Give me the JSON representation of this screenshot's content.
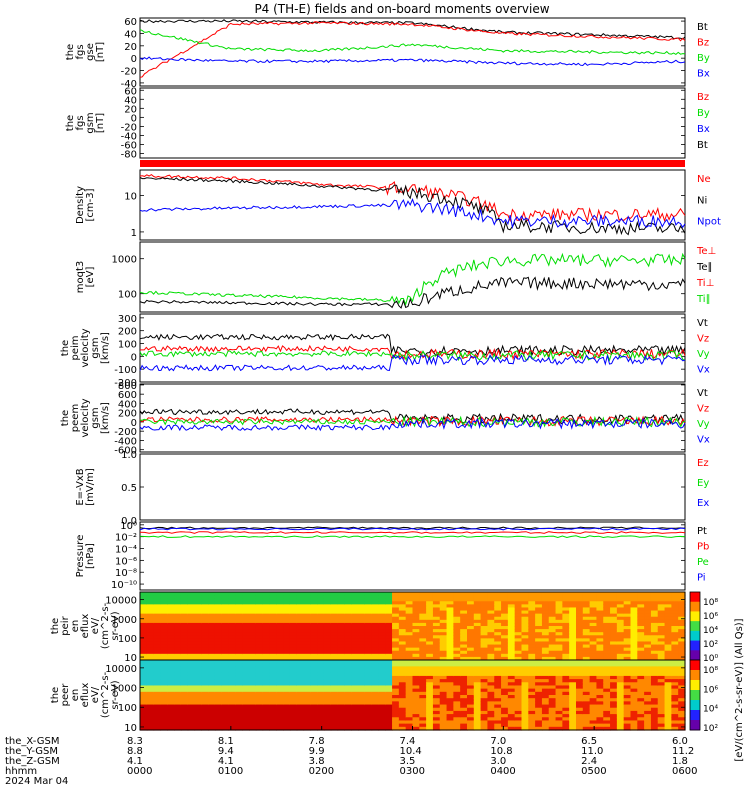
{
  "title": "P4 (TH-E) fields and on-board moments overview",
  "colors": {
    "black": "#000000",
    "red": "#ff0000",
    "green": "#00dd00",
    "blue": "#0000ff"
  },
  "panels": [
    {
      "id": "fgs-gse",
      "ylabel": [
        "the",
        "fgs",
        "gse",
        "[nT]"
      ],
      "ticks": [
        "60",
        "40",
        "20",
        "0",
        "-20",
        "-40"
      ],
      "tick_values": [
        60,
        40,
        20,
        0,
        -20,
        -40
      ],
      "ylim": [
        -45,
        65
      ],
      "legend": [
        {
          "text": "Bt",
          "color": "black"
        },
        {
          "text": "Bz",
          "color": "red"
        },
        {
          "text": "By",
          "color": "green"
        },
        {
          "text": "Bx",
          "color": "blue"
        }
      ]
    },
    {
      "id": "fgs-gsm",
      "ylabel": [
        "the",
        "fgs",
        "gsm",
        "[nT]"
      ],
      "ticks": [
        "60",
        "40",
        "20",
        "0",
        "-20",
        "-40",
        "-60",
        "-80"
      ],
      "tick_values": [
        60,
        40,
        20,
        0,
        -20,
        -40,
        -60,
        -80
      ],
      "ylim": [
        -90,
        65
      ],
      "legend": [
        {
          "text": "Bz",
          "color": "red"
        },
        {
          "text": "By",
          "color": "green"
        },
        {
          "text": "Bx",
          "color": "blue"
        },
        {
          "text": "Bt",
          "color": "black"
        }
      ]
    },
    {
      "id": "density",
      "ylabel": [
        "Density",
        "[cm-3]"
      ],
      "ticks": [
        "10",
        "1"
      ],
      "tick_values": [
        10,
        1
      ],
      "log": true,
      "ylim": [
        0.6,
        50
      ],
      "legend": [
        {
          "text": "Ne",
          "color": "red"
        },
        {
          "text": "Ni",
          "color": "black"
        },
        {
          "text": "Npot",
          "color": "blue"
        }
      ]
    },
    {
      "id": "temperature",
      "ylabel": [
        "moqt3",
        "[eV]"
      ],
      "ticks": [
        "1000",
        "100"
      ],
      "tick_values": [
        1000,
        100
      ],
      "log": true,
      "ylim": [
        30,
        3000
      ],
      "legend": [
        {
          "text": "Te⊥",
          "color": "red"
        },
        {
          "text": "Te∥",
          "color": "black"
        },
        {
          "text": "Ti⊥",
          "color": "red"
        },
        {
          "text": "Ti∥",
          "color": "green"
        }
      ]
    },
    {
      "id": "peim-velocity",
      "ylabel": [
        "the",
        "peim",
        "velocity",
        "gsm",
        "[km/s]"
      ],
      "ticks": [
        "300",
        "200",
        "100",
        "0",
        "-100",
        "-200"
      ],
      "tick_values": [
        300,
        200,
        100,
        0,
        -100,
        -200
      ],
      "ylim": [
        -200,
        330
      ],
      "legend": [
        {
          "text": "Vt",
          "color": "black"
        },
        {
          "text": "Vz",
          "color": "red"
        },
        {
          "text": "Vy",
          "color": "green"
        },
        {
          "text": "Vx",
          "color": "blue"
        }
      ]
    },
    {
      "id": "peem-velocity",
      "ylabel": [
        "the",
        "peem",
        "velocity",
        "gsm",
        "[km/s]"
      ],
      "ticks": [
        "800",
        "600",
        "400",
        "200",
        "0",
        "-200",
        "-400",
        "-600"
      ],
      "tick_values": [
        800,
        600,
        400,
        200,
        0,
        -200,
        -400,
        -600
      ],
      "ylim": [
        -650,
        820
      ],
      "legend": [
        {
          "text": "Vt",
          "color": "black"
        },
        {
          "text": "Vz",
          "color": "red"
        },
        {
          "text": "Vy",
          "color": "green"
        },
        {
          "text": "Vx",
          "color": "blue"
        }
      ]
    },
    {
      "id": "efield",
      "ylabel": [
        "E=-VxB",
        "[mV/m]"
      ],
      "ticks": [
        "1.0",
        "0.5",
        "0.0"
      ],
      "tick_values": [
        1.0,
        0.5,
        0.0
      ],
      "ylim": [
        0,
        1.0
      ],
      "legend": [
        {
          "text": "Ez",
          "color": "red"
        },
        {
          "text": "Ey",
          "color": "green"
        },
        {
          "text": "Ex",
          "color": "blue"
        }
      ]
    },
    {
      "id": "pressure",
      "ylabel": [
        "Pressure",
        "[nPa]"
      ],
      "ticks": [
        "10⁰",
        "10⁻²",
        "10⁻⁴",
        "10⁻⁶",
        "10⁻⁸",
        "10⁻¹⁰"
      ],
      "tick_values": [
        1,
        0.01,
        0.0001,
        1e-06,
        1e-08,
        1e-10
      ],
      "log": true,
      "ylim": [
        1e-11,
        3
      ],
      "legend": [
        {
          "text": "Pt",
          "color": "black"
        },
        {
          "text": "Pb",
          "color": "red"
        },
        {
          "text": "Pe",
          "color": "green"
        },
        {
          "text": "Pi",
          "color": "blue"
        }
      ]
    },
    {
      "id": "peir-eflux",
      "ylabel": [
        "the",
        "peir",
        "en",
        "eflux",
        "eV/",
        "(cm^2-s-",
        "sr-eV)"
      ],
      "ticks": [
        "10000",
        "1000",
        "100",
        "10"
      ],
      "tick_values": [
        10000,
        1000,
        100,
        10
      ],
      "log": true,
      "ylim": [
        7,
        25000
      ],
      "colorbar_ticks": [
        "10⁸",
        "10⁶",
        "10⁴",
        "10²",
        "10⁰"
      ]
    },
    {
      "id": "peer-eflux",
      "ylabel": [
        "the",
        "peer",
        "en",
        "eflux",
        "eV/",
        "(cm^2-s-",
        "sr-eV)"
      ],
      "ticks": [
        "10000",
        "1000",
        "100",
        "10"
      ],
      "tick_values": [
        10000,
        1000,
        100,
        10
      ],
      "log": true,
      "ylim": [
        7,
        25000
      ],
      "colorbar_ticks": [
        "10⁸",
        "10⁶",
        "10⁴",
        "10²"
      ]
    }
  ],
  "colorbar_label": "[eV/(cm^2-s-sr-eV)] (All Qs)]",
  "orbit_table": {
    "rows": [
      {
        "label": "the_X-GSM",
        "values": [
          "8.3",
          "8.1",
          "7.8",
          "7.4",
          "7.0",
          "6.5",
          "6.0"
        ]
      },
      {
        "label": "the_Y-GSM",
        "values": [
          "8.8",
          "9.4",
          "9.9",
          "10.4",
          "10.8",
          "11.0",
          "11.2"
        ]
      },
      {
        "label": "the_Z-GSM",
        "values": [
          "4.1",
          "4.1",
          "3.8",
          "3.5",
          "3.0",
          "2.4",
          "1.8"
        ]
      },
      {
        "label": "hhmm",
        "values": [
          "0000",
          "0100",
          "0200",
          "0300",
          "0400",
          "0500",
          "0600"
        ]
      }
    ],
    "date": "2024 Mar 04"
  },
  "chart_data": {
    "type": "line",
    "title": "P4 (TH-E) fields and on-board moments overview",
    "x_label": "hhmm",
    "x": [
      "0000",
      "0100",
      "0200",
      "0300",
      "0400",
      "0500",
      "0600"
    ],
    "series": [
      {
        "name": "Bt",
        "panel": "fgs-gse",
        "values": [
          60,
          60,
          58,
          57,
          42,
          38,
          33
        ]
      },
      {
        "name": "Bz",
        "panel": "fgs-gse",
        "values": [
          -30,
          55,
          57,
          55,
          40,
          35,
          30
        ]
      },
      {
        "name": "By",
        "panel": "fgs-gse",
        "values": [
          45,
          15,
          12,
          22,
          12,
          10,
          8
        ]
      },
      {
        "name": "Bx",
        "panel": "fgs-gse",
        "values": [
          0,
          -5,
          -5,
          -3,
          -8,
          -10,
          -5
        ]
      },
      {
        "name": "Ne",
        "panel": "density",
        "values": [
          35,
          30,
          20,
          15,
          3,
          3,
          3
        ]
      },
      {
        "name": "Ni",
        "panel": "density",
        "values": [
          30,
          25,
          18,
          12,
          1.5,
          1.3,
          1.2
        ]
      },
      {
        "name": "Npot",
        "panel": "density",
        "values": [
          4,
          4.5,
          5,
          5.5,
          2,
          2,
          2
        ]
      },
      {
        "name": "Ti∥",
        "panel": "temperature",
        "values": [
          110,
          90,
          75,
          60,
          900,
          900,
          900
        ]
      },
      {
        "name": "Te∥",
        "panel": "temperature",
        "values": [
          60,
          55,
          50,
          50,
          200,
          200,
          180
        ]
      }
    ]
  }
}
